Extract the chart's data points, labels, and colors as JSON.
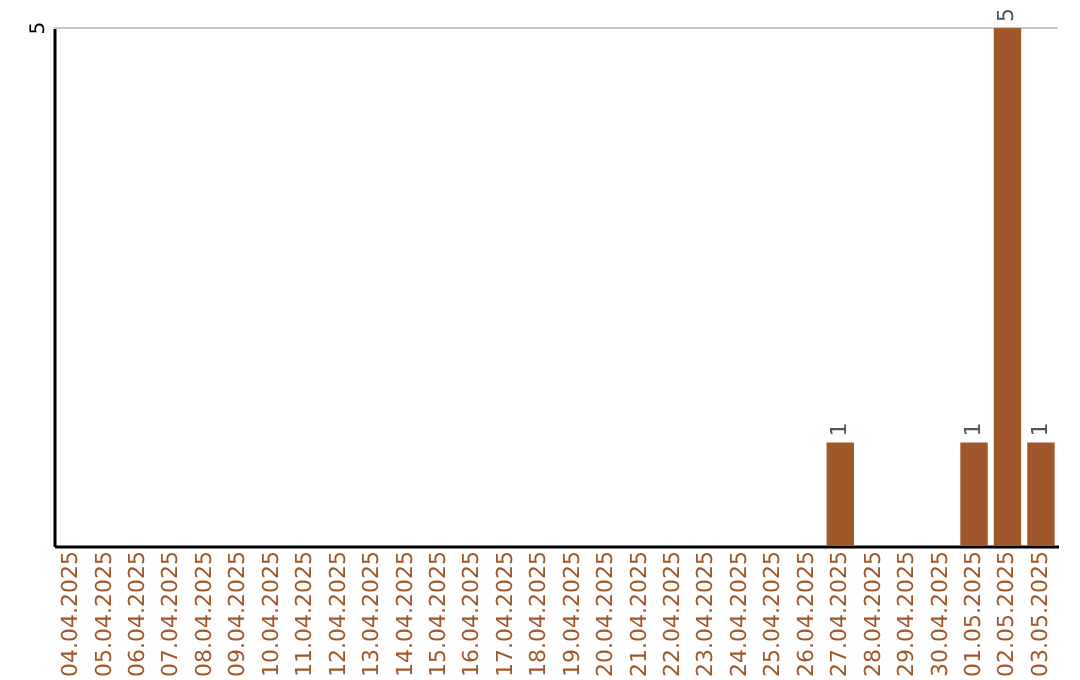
{
  "chart_data": {
    "type": "bar",
    "ylim": [
      0,
      5
    ],
    "categories": [
      "04.04.2025",
      "05.04.2025",
      "06.04.2025",
      "07.04.2025",
      "08.04.2025",
      "09.04.2025",
      "10.04.2025",
      "11.04.2025",
      "12.04.2025",
      "13.04.2025",
      "14.04.2025",
      "15.04.2025",
      "16.04.2025",
      "17.04.2025",
      "18.04.2025",
      "19.04.2025",
      "20.04.2025",
      "21.04.2025",
      "22.04.2025",
      "23.04.2025",
      "24.04.2025",
      "25.04.2025",
      "26.04.2025",
      "27.04.2025",
      "28.04.2025",
      "29.04.2025",
      "30.04.2025",
      "01.05.2025",
      "02.05.2025",
      "03.05.2025"
    ],
    "values": [
      null,
      null,
      null,
      null,
      null,
      null,
      null,
      null,
      null,
      null,
      null,
      null,
      null,
      null,
      null,
      null,
      null,
      null,
      null,
      null,
      null,
      null,
      null,
      1,
      null,
      null,
      null,
      1,
      5,
      1
    ],
    "data_labels": true,
    "color": "#a0582a",
    "ref_lines": [
      {
        "axis": "y",
        "value": 5,
        "label": "5",
        "color": "#c8c8c8"
      }
    ]
  }
}
